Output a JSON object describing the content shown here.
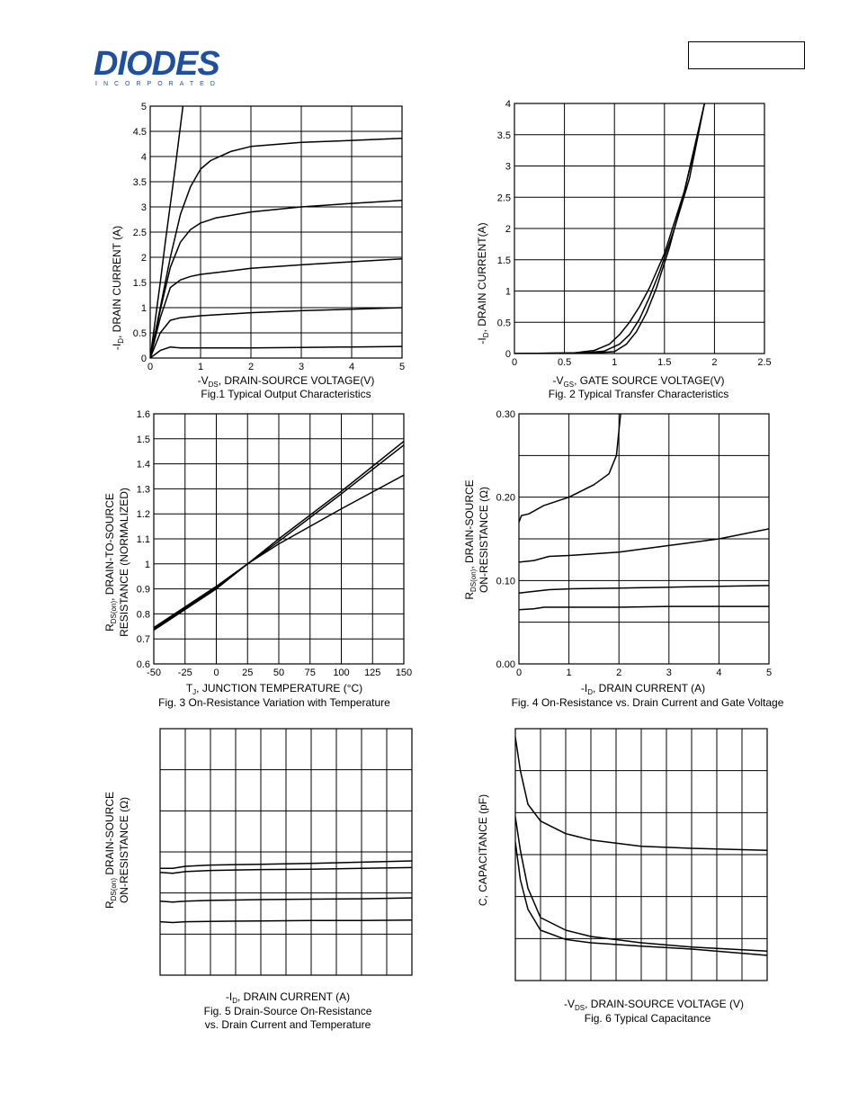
{
  "header": {
    "logo_text": "DIODES",
    "logo_sub": "INCORPORATED",
    "part_number_box": ""
  },
  "figures": [
    {
      "id": "fig1",
      "caption": "Fig.1 Typical Output Characteristics",
      "xlabel": "-VDS, DRAIN-SOURCE VOLTAGE(V)",
      "ylabel": "-ID, DRAIN CURRENT (A)"
    },
    {
      "id": "fig2",
      "caption": "Fig. 2 Typical Transfer Characteristics",
      "xlabel": "-VGS, GATE SOURCE VOLTAGE(V)",
      "ylabel": "-ID, DRAIN CURRENT(A)"
    },
    {
      "id": "fig3",
      "caption": "Fig. 3 On-Resistance Variation with Temperature",
      "xlabel": "TJ, JUNCTION TEMPERATURE (°C)",
      "ylabel": "RDS(on), DRAIN-TO-SOURCE RESISTANCE (NORMALIZED)"
    },
    {
      "id": "fig4",
      "caption": "Fig. 4 On-Resistance vs. Drain Current and Gate Voltage",
      "xlabel": "-ID, DRAIN CURRENT (A)",
      "ylabel": "RDS(on), DRAIN-SOURCE ON-RESISTANCE (Ω)"
    },
    {
      "id": "fig5",
      "caption": "Fig. 5 Drain-Source On-Resistance vs. Drain Current and Temperature",
      "xlabel": "-ID, DRAIN CURRENT (A)",
      "ylabel": "RDS(on) DRAIN-SOURCE ON-RESISTANCE (Ω)"
    },
    {
      "id": "fig6",
      "caption": "Fig. 6 Typical Capacitance",
      "xlabel": "-VDS, DRAIN-SOURCE VOLTAGE (V)",
      "ylabel": "C, CAPACITANCE (pF)"
    }
  ],
  "chart_data": [
    {
      "id": "fig1",
      "type": "line",
      "xlim": [
        0,
        5
      ],
      "ylim": [
        0,
        5
      ],
      "xticks": [
        "0",
        "1",
        "2",
        "3",
        "4",
        "5"
      ],
      "yticks": [
        "0",
        "0.5",
        "1",
        "1.5",
        "2",
        "2.5",
        "3",
        "3.5",
        "4",
        "4.5",
        "5"
      ],
      "grid": true,
      "series": [
        {
          "x": [
            0,
            0.1,
            0.2,
            0.3,
            0.4,
            0.5,
            0.6,
            0.7
          ],
          "y": [
            0,
            0.75,
            1.5,
            2.3,
            3.05,
            3.8,
            4.6,
            5.4
          ]
        },
        {
          "x": [
            0,
            0.2,
            0.4,
            0.6,
            0.8,
            1.0,
            1.2,
            1.6,
            2.0,
            3.0,
            4.0,
            5.0
          ],
          "y": [
            0,
            1.0,
            2.0,
            2.85,
            3.4,
            3.75,
            3.92,
            4.1,
            4.2,
            4.28,
            4.32,
            4.36
          ]
        },
        {
          "x": [
            0,
            0.2,
            0.4,
            0.6,
            0.8,
            1.0,
            1.3,
            2.0,
            3.0,
            4.0,
            5.0
          ],
          "y": [
            0,
            0.95,
            1.8,
            2.3,
            2.55,
            2.68,
            2.78,
            2.9,
            3.0,
            3.07,
            3.13
          ]
        },
        {
          "x": [
            0,
            0.2,
            0.4,
            0.6,
            0.8,
            1.0,
            1.5,
            2.0,
            3.0,
            4.0,
            5.0
          ],
          "y": [
            0,
            0.8,
            1.4,
            1.55,
            1.62,
            1.66,
            1.72,
            1.78,
            1.85,
            1.91,
            1.97
          ]
        },
        {
          "x": [
            0,
            0.2,
            0.4,
            0.6,
            0.8,
            1.0,
            2.0,
            3.0,
            4.0,
            5.0
          ],
          "y": [
            0,
            0.5,
            0.75,
            0.8,
            0.82,
            0.84,
            0.9,
            0.94,
            0.97,
            1.0
          ]
        },
        {
          "x": [
            0,
            0.2,
            0.4,
            0.6,
            1.0,
            2.0,
            3.0,
            4.0,
            5.0
          ],
          "y": [
            0,
            0.15,
            0.22,
            0.2,
            0.2,
            0.2,
            0.21,
            0.22,
            0.23
          ]
        }
      ]
    },
    {
      "id": "fig2",
      "type": "line",
      "xlim": [
        0,
        2.5
      ],
      "ylim": [
        0,
        4
      ],
      "xticks": [
        "0",
        "0.5",
        "1",
        "1.5",
        "2",
        "2.5"
      ],
      "yticks": [
        "0",
        "0.5",
        "1",
        "1.5",
        "2",
        "2.5",
        "3",
        "3.5",
        "4"
      ],
      "grid": true,
      "series": [
        {
          "x": [
            0,
            0.6,
            0.8,
            0.95,
            1.05,
            1.15,
            1.25,
            1.35,
            1.5,
            1.7,
            1.9
          ],
          "y": [
            0,
            0.01,
            0.05,
            0.15,
            0.3,
            0.5,
            0.75,
            1.05,
            1.6,
            2.6,
            4.0
          ]
        },
        {
          "x": [
            0,
            0.7,
            0.9,
            1.05,
            1.15,
            1.25,
            1.35,
            1.45,
            1.6,
            1.75,
            1.9
          ],
          "y": [
            0,
            0.01,
            0.04,
            0.15,
            0.3,
            0.55,
            0.9,
            1.3,
            2.0,
            2.8,
            4.0
          ]
        },
        {
          "x": [
            0,
            0.8,
            1.0,
            1.12,
            1.22,
            1.32,
            1.42,
            1.55,
            1.7,
            1.85
          ],
          "y": [
            0,
            0.01,
            0.03,
            0.15,
            0.35,
            0.65,
            1.05,
            1.7,
            2.6,
            3.6
          ]
        }
      ]
    },
    {
      "id": "fig3",
      "type": "line",
      "xlim": [
        -50,
        150
      ],
      "ylim": [
        0.6,
        1.6
      ],
      "xticks": [
        "-50",
        "-25",
        "0",
        "25",
        "50",
        "75",
        "100",
        "125",
        "150"
      ],
      "yticks": [
        "0.6",
        "0.7",
        "0.8",
        "0.9",
        "1",
        "1.1",
        "1.2",
        "1.3",
        "1.4",
        "1.5",
        "1.6"
      ],
      "grid": true,
      "series": [
        {
          "x": [
            -50,
            0,
            25,
            50,
            100,
            150
          ],
          "y": [
            0.735,
            0.9,
            1.0,
            1.1,
            1.29,
            1.49
          ]
        },
        {
          "x": [
            -50,
            0,
            25,
            50,
            100,
            150
          ],
          "y": [
            0.74,
            0.905,
            1.0,
            1.09,
            1.28,
            1.475
          ]
        },
        {
          "x": [
            -50,
            0,
            25,
            50,
            100,
            150
          ],
          "y": [
            0.745,
            0.91,
            1.0,
            1.08,
            1.22,
            1.355
          ]
        }
      ]
    },
    {
      "id": "fig4",
      "type": "line",
      "xlim": [
        0,
        5
      ],
      "ylim": [
        0,
        0.3
      ],
      "xticks": [
        "0",
        "1",
        "2",
        "3",
        "4",
        "5"
      ],
      "yticks": [
        "0.00",
        "0.10",
        "0.20",
        "0.30"
      ],
      "grid": true,
      "series": [
        {
          "x": [
            0,
            0.05,
            0.2,
            0.5,
            1.0,
            1.5,
            1.8,
            1.95,
            2.0,
            2.05
          ],
          "y": [
            0.17,
            0.178,
            0.18,
            0.19,
            0.2,
            0.215,
            0.228,
            0.25,
            0.28,
            0.31
          ]
        },
        {
          "x": [
            0,
            0.3,
            0.6,
            1.0,
            2.0,
            3.0,
            4.0,
            5.0
          ],
          "y": [
            0.122,
            0.124,
            0.129,
            0.13,
            0.134,
            0.142,
            0.15,
            0.162
          ]
        },
        {
          "x": [
            0,
            0.3,
            0.6,
            1.0,
            2.0,
            3.0,
            4.0,
            5.0
          ],
          "y": [
            0.085,
            0.087,
            0.089,
            0.09,
            0.091,
            0.092,
            0.093,
            0.094
          ]
        },
        {
          "x": [
            0,
            0.3,
            0.5,
            1.0,
            2.0,
            3.0,
            4.0,
            5.0
          ],
          "y": [
            0.065,
            0.066,
            0.068,
            0.068,
            0.068,
            0.069,
            0.069,
            0.069
          ]
        }
      ]
    },
    {
      "id": "fig5",
      "type": "line",
      "xlim": [
        0,
        10
      ],
      "ylim": [
        0,
        6
      ],
      "grid": true,
      "series": [
        {
          "x": [
            0,
            0.5,
            1,
            2,
            4,
            6,
            8,
            10
          ],
          "y": [
            2.6,
            2.6,
            2.65,
            2.68,
            2.7,
            2.72,
            2.75,
            2.78
          ]
        },
        {
          "x": [
            0,
            0.5,
            1,
            2,
            4,
            6,
            8,
            10
          ],
          "y": [
            2.5,
            2.48,
            2.52,
            2.55,
            2.57,
            2.58,
            2.6,
            2.62
          ]
        },
        {
          "x": [
            0,
            0.5,
            1,
            2,
            4,
            6,
            8,
            10
          ],
          "y": [
            1.8,
            1.78,
            1.8,
            1.82,
            1.84,
            1.85,
            1.86,
            1.88
          ]
        },
        {
          "x": [
            0,
            0.5,
            1,
            2,
            4,
            6,
            8,
            10
          ],
          "y": [
            1.3,
            1.28,
            1.3,
            1.31,
            1.32,
            1.33,
            1.33,
            1.34
          ]
        }
      ]
    },
    {
      "id": "fig6",
      "type": "line",
      "xlim": [
        0,
        10
      ],
      "ylim": [
        0,
        6
      ],
      "grid": true,
      "series": [
        {
          "x": [
            0,
            0.2,
            0.5,
            1,
            2,
            3,
            5,
            7,
            10
          ],
          "y": [
            5.8,
            5.0,
            4.2,
            3.8,
            3.5,
            3.35,
            3.2,
            3.15,
            3.1
          ]
        },
        {
          "x": [
            0,
            0.2,
            0.5,
            1,
            2,
            3,
            5,
            7,
            10
          ],
          "y": [
            3.9,
            3.1,
            2.2,
            1.5,
            1.2,
            1.05,
            0.9,
            0.8,
            0.7
          ]
        },
        {
          "x": [
            0,
            0.2,
            0.5,
            1,
            2,
            3,
            5,
            7,
            10
          ],
          "y": [
            3.3,
            2.4,
            1.7,
            1.2,
            0.98,
            0.9,
            0.82,
            0.75,
            0.6
          ]
        }
      ]
    }
  ]
}
